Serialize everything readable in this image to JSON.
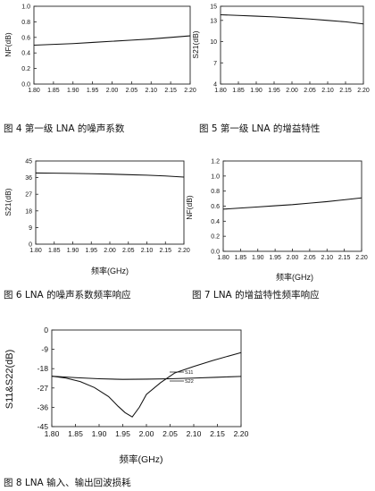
{
  "chart_data": [
    {
      "id": "f4",
      "type": "line",
      "title": "图 4 第一级 LNA 的噪声系数",
      "xlabel": "",
      "ylabel": "NF(dB)",
      "xlim": [
        1.8,
        2.2
      ],
      "ylim": [
        0.0,
        1.0
      ],
      "xticks": [
        "1.80",
        "1.85",
        "1.90",
        "1.95",
        "2.00",
        "2.05",
        "2.10",
        "2.15",
        "2.20"
      ],
      "yticks": [
        "0.0",
        "0.2",
        "0.4",
        "0.6",
        "0.8",
        "1.0"
      ],
      "series": [
        {
          "x": [
            1.8,
            1.85,
            1.9,
            1.95,
            2.0,
            2.05,
            2.1,
            2.15,
            2.2
          ],
          "values": [
            0.5,
            0.51,
            0.52,
            0.535,
            0.55,
            0.565,
            0.58,
            0.6,
            0.62
          ]
        }
      ]
    },
    {
      "id": "f5",
      "type": "line",
      "title": "图 5 第一级 LNA 的增益特性",
      "xlabel": "",
      "ylabel": "S21(dB)",
      "xlim": [
        1.8,
        2.2
      ],
      "ylim": [
        4,
        15
      ],
      "xticks": [
        "1.80",
        "1.85",
        "1.90",
        "1.95",
        "2.00",
        "2.05",
        "2.10",
        "2.15",
        "2.20"
      ],
      "yticks": [
        "4",
        "7",
        "10",
        "13",
        "15"
      ],
      "series": [
        {
          "x": [
            1.8,
            1.85,
            1.9,
            1.95,
            2.0,
            2.05,
            2.1,
            2.15,
            2.2
          ],
          "values": [
            13.8,
            13.7,
            13.6,
            13.5,
            13.35,
            13.2,
            13.0,
            12.8,
            12.5
          ]
        }
      ]
    },
    {
      "id": "f6",
      "type": "line",
      "title": "图 6 LNA 的噪声系数频率响应",
      "xlabel": "频率(GHz)",
      "ylabel": "S21(dB)",
      "xlim": [
        1.8,
        2.2
      ],
      "ylim": [
        0,
        45
      ],
      "xticks": [
        "1.80",
        "1.85",
        "1.90",
        "1.95",
        "2.00",
        "2.05",
        "2.10",
        "2.15",
        "2.20"
      ],
      "yticks": [
        "0",
        "9",
        "18",
        "27",
        "36",
        "45"
      ],
      "series": [
        {
          "x": [
            1.8,
            1.85,
            1.9,
            1.95,
            2.0,
            2.05,
            2.1,
            2.15,
            2.2
          ],
          "values": [
            38.5,
            38.4,
            38.3,
            38.1,
            37.9,
            37.6,
            37.3,
            36.9,
            36.3
          ]
        }
      ]
    },
    {
      "id": "f7",
      "type": "line",
      "title": "图 7 LNA 的增益特性频率响应",
      "xlabel": "频率(GHz)",
      "ylabel": "NF(dB)",
      "xlim": [
        1.8,
        2.2
      ],
      "ylim": [
        0.0,
        1.2
      ],
      "xticks": [
        "1.80",
        "1.85",
        "1.90",
        "1.95",
        "2.00",
        "2.05",
        "2.10",
        "2.15",
        "2.20"
      ],
      "yticks": [
        "0.0",
        "0.2",
        "0.4",
        "0.6",
        "0.8",
        "1.0",
        "1.2"
      ],
      "series": [
        {
          "x": [
            1.8,
            1.85,
            1.9,
            1.95,
            2.0,
            2.05,
            2.1,
            2.15,
            2.2
          ],
          "values": [
            0.56,
            0.575,
            0.59,
            0.605,
            0.62,
            0.64,
            0.66,
            0.685,
            0.71
          ]
        }
      ]
    },
    {
      "id": "f8",
      "type": "line",
      "title": "图 8 LNA 输入、输出回波损耗",
      "xlabel": "频率(GHz)",
      "ylabel": "S11&S22(dB)",
      "xlim": [
        1.8,
        2.2
      ],
      "ylim": [
        -45,
        0
      ],
      "xticks": [
        "1.80",
        "1.85",
        "1.90",
        "1.95",
        "2.00",
        "2.05",
        "2.10",
        "2.15",
        "2.20"
      ],
      "yticks": [
        "0",
        "-9",
        "-18",
        "-27",
        "-36",
        "-45"
      ],
      "series": [
        {
          "name": "S11",
          "x": [
            1.8,
            1.83,
            1.86,
            1.89,
            1.92,
            1.94,
            1.955,
            1.97,
            1.985,
            2.0,
            2.03,
            2.06,
            2.1,
            2.14,
            2.2
          ],
          "values": [
            -21.5,
            -22.4,
            -24.0,
            -26.8,
            -31.0,
            -35.5,
            -38.5,
            -40.5,
            -36.0,
            -30.0,
            -24.5,
            -20.0,
            -17.0,
            -14.2,
            -10.5
          ]
        },
        {
          "name": "S22",
          "x": [
            1.8,
            1.85,
            1.9,
            1.95,
            2.0,
            2.05,
            2.1,
            2.15,
            2.2
          ],
          "values": [
            -21.5,
            -22.2,
            -22.7,
            -23.0,
            -22.9,
            -22.7,
            -22.4,
            -22.0,
            -21.6
          ]
        }
      ]
    }
  ]
}
